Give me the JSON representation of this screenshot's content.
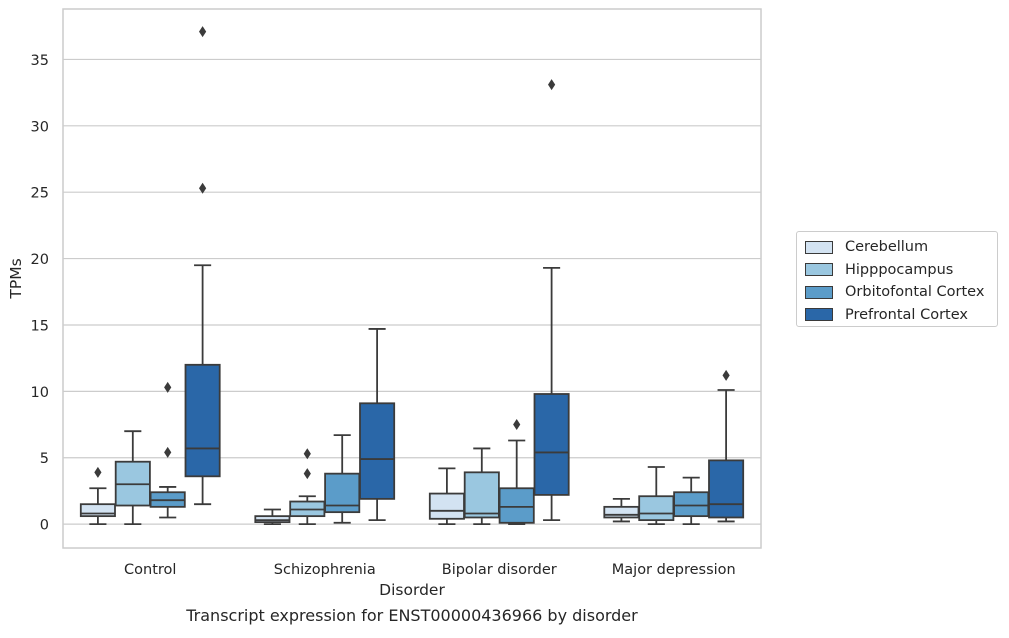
{
  "caption": "Transcript expression for ENST00000436966 by disorder",
  "chart_data": {
    "type": "box",
    "xlabel": "Disorder",
    "ylabel": "TPMs",
    "ylim": [
      -1.8,
      38.8
    ],
    "yticks": [
      0,
      5,
      10,
      15,
      20,
      25,
      30,
      35
    ],
    "grid": "horizontal",
    "legend_position": "right",
    "categories": [
      "Control",
      "Schizophrenia",
      "Bipolar disorder",
      "Major depression"
    ],
    "series": [
      {
        "name": "Cerebellum",
        "color": "#d3e3f2",
        "boxes": [
          {
            "whisker_low": 0,
            "q1": 0.6,
            "median": 0.8,
            "q3": 1.5,
            "whisker_high": 2.7,
            "outliers": [
              3.9
            ]
          },
          {
            "whisker_low": 0,
            "q1": 0.15,
            "median": 0.3,
            "q3": 0.6,
            "whisker_high": 1.1,
            "outliers": []
          },
          {
            "whisker_low": 0,
            "q1": 0.4,
            "median": 1.0,
            "q3": 2.3,
            "whisker_high": 4.2,
            "outliers": []
          },
          {
            "whisker_low": 0.2,
            "q1": 0.5,
            "median": 0.7,
            "q3": 1.3,
            "whisker_high": 1.9,
            "outliers": []
          }
        ]
      },
      {
        "name": "Hipppocampus",
        "color": "#9ac7e0",
        "boxes": [
          {
            "whisker_low": 0,
            "q1": 1.4,
            "median": 3.0,
            "q3": 4.7,
            "whisker_high": 7.0,
            "outliers": []
          },
          {
            "whisker_low": 0,
            "q1": 0.6,
            "median": 1.1,
            "q3": 1.7,
            "whisker_high": 2.1,
            "outliers": [
              3.8,
              5.3
            ]
          },
          {
            "whisker_low": 0,
            "q1": 0.5,
            "median": 0.8,
            "q3": 3.9,
            "whisker_high": 5.7,
            "outliers": []
          },
          {
            "whisker_low": 0,
            "q1": 0.3,
            "median": 0.8,
            "q3": 2.1,
            "whisker_high": 4.3,
            "outliers": []
          }
        ]
      },
      {
        "name": "Orbitofontal Cortex",
        "color": "#5b9cc9",
        "boxes": [
          {
            "whisker_low": 0.5,
            "q1": 1.3,
            "median": 1.8,
            "q3": 2.4,
            "whisker_high": 2.8,
            "outliers": [
              5.4,
              10.3
            ]
          },
          {
            "whisker_low": 0.1,
            "q1": 0.9,
            "median": 1.4,
            "q3": 3.8,
            "whisker_high": 6.7,
            "outliers": []
          },
          {
            "whisker_low": 0,
            "q1": 0.1,
            "median": 1.3,
            "q3": 2.7,
            "whisker_high": 6.3,
            "outliers": [
              7.5
            ]
          },
          {
            "whisker_low": 0,
            "q1": 0.6,
            "median": 1.4,
            "q3": 2.4,
            "whisker_high": 3.5,
            "outliers": []
          }
        ]
      },
      {
        "name": "Prefrontal Cortex",
        "color": "#2a67a8",
        "boxes": [
          {
            "whisker_low": 1.5,
            "q1": 3.6,
            "median": 5.7,
            "q3": 12.0,
            "whisker_high": 19.5,
            "outliers": [
              25.3,
              37.1
            ]
          },
          {
            "whisker_low": 0.3,
            "q1": 1.9,
            "median": 4.9,
            "q3": 9.1,
            "whisker_high": 14.7,
            "outliers": []
          },
          {
            "whisker_low": 0.3,
            "q1": 2.2,
            "median": 5.4,
            "q3": 9.8,
            "whisker_high": 19.3,
            "outliers": [
              33.1
            ]
          },
          {
            "whisker_low": 0.2,
            "q1": 0.5,
            "median": 1.5,
            "q3": 4.8,
            "whisker_high": 10.1,
            "outliers": [
              11.2
            ]
          }
        ]
      }
    ]
  }
}
